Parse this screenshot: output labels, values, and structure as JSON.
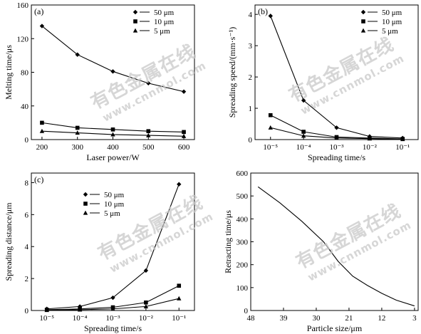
{
  "watermark": {
    "text": "有色金属在线",
    "url": "www.cnnmol.com"
  },
  "chart_data": [
    {
      "panel": "(a)",
      "type": "line",
      "xlabel": "Laser power/W",
      "ylabel": "Melting time/μs",
      "x": [
        200,
        300,
        400,
        500,
        600
      ],
      "xticks": [
        "200",
        "300",
        "400",
        "500",
        "600"
      ],
      "xlim": [
        170,
        630
      ],
      "ylim": [
        0,
        160
      ],
      "yticks": [
        "0",
        "40",
        "80",
        "120",
        "160"
      ],
      "legend_position": "top-right",
      "series": [
        {
          "name": "50 μm",
          "marker": "diamond",
          "values": [
            135,
            101,
            81,
            67,
            57
          ]
        },
        {
          "name": "10 μm",
          "marker": "square",
          "values": [
            20,
            14,
            12,
            10,
            9
          ]
        },
        {
          "name": "5 μm",
          "marker": "triangle",
          "values": [
            10,
            8,
            6,
            5,
            4
          ]
        }
      ]
    },
    {
      "panel": "(b)",
      "type": "line",
      "xlabel": "Spreading time/s",
      "ylabel": "Spreading speed/(mm·s⁻¹)",
      "x": [
        1e-05,
        0.0001,
        0.001,
        0.01,
        0.1
      ],
      "x_scale": "log",
      "xticks": [
        "10⁻⁵",
        "10⁻⁴",
        "10⁻³",
        "10⁻²",
        "10⁻¹"
      ],
      "ylim": [
        0,
        4.3
      ],
      "yticks": [
        "0",
        "1",
        "2",
        "3",
        "4"
      ],
      "legend_position": "top-right",
      "series": [
        {
          "name": "50 μm",
          "marker": "diamond",
          "values": [
            3.95,
            1.25,
            0.38,
            0.1,
            0.05
          ]
        },
        {
          "name": "10 μm",
          "marker": "square",
          "values": [
            0.78,
            0.25,
            0.08,
            0.05,
            0.02
          ]
        },
        {
          "name": "5 μm",
          "marker": "triangle",
          "values": [
            0.38,
            0.12,
            0.05,
            0.03,
            0.01
          ]
        }
      ]
    },
    {
      "panel": "(c)",
      "type": "line",
      "xlabel": "Spreading time/s",
      "ylabel": "Spreading distance/μm",
      "x": [
        1e-05,
        0.0001,
        0.001,
        0.01,
        0.1
      ],
      "x_scale": "log",
      "xticks": [
        "10⁻⁵",
        "10⁻⁴",
        "10⁻³",
        "10⁻²",
        "10⁻¹"
      ],
      "ylim": [
        0,
        8.6
      ],
      "yticks": [
        "0",
        "2",
        "4",
        "6",
        "8"
      ],
      "legend_position": "top-left",
      "series": [
        {
          "name": "50 μm",
          "marker": "diamond",
          "values": [
            0.1,
            0.25,
            0.8,
            2.5,
            7.9
          ]
        },
        {
          "name": "10 μm",
          "marker": "square",
          "values": [
            0.05,
            0.1,
            0.2,
            0.5,
            1.55
          ]
        },
        {
          "name": "5 μm",
          "marker": "triangle",
          "values": [
            0.02,
            0.05,
            0.1,
            0.25,
            0.75
          ]
        }
      ]
    },
    {
      "panel": "",
      "type": "line",
      "xlabel": "Particle size/μm",
      "ylabel": "Retracting time/μs",
      "x": [
        46,
        40,
        34,
        28,
        24,
        20,
        16,
        12,
        8,
        3
      ],
      "x_reversed": true,
      "xlim": [
        48,
        2
      ],
      "xticks": [
        "48",
        "39",
        "30",
        "21",
        "12",
        "3"
      ],
      "ylim": [
        0,
        600
      ],
      "yticks": [
        "0",
        "100",
        "200",
        "300",
        "400",
        "500",
        "600"
      ],
      "series": [
        {
          "name": "",
          "marker": "none",
          "values": [
            540,
            470,
            390,
            300,
            215,
            150,
            110,
            75,
            45,
            20
          ]
        }
      ]
    }
  ]
}
